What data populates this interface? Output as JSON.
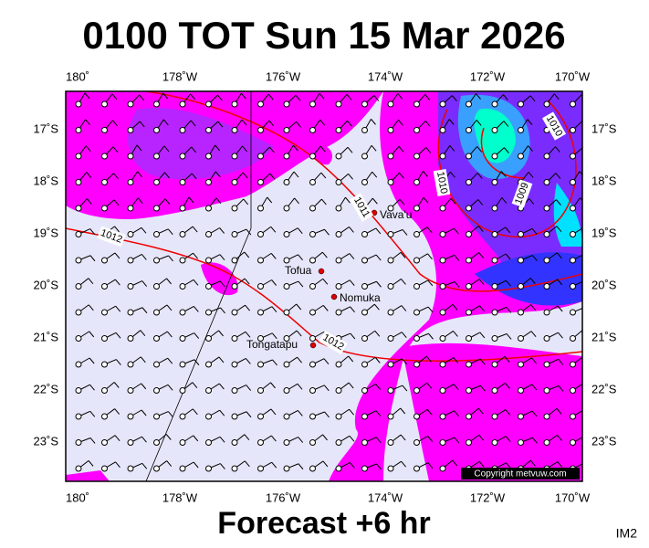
{
  "header": {
    "title": "0100 TOT Sun 15 Mar 2026"
  },
  "map": {
    "lon_labels": [
      "180˚",
      "178˚W",
      "176˚W",
      "174˚W",
      "172˚W",
      "170˚W"
    ],
    "lat_labels": [
      "17˚S",
      "18˚S",
      "19˚S",
      "20˚S",
      "21˚S",
      "22˚S",
      "23˚S"
    ],
    "places": [
      {
        "label": "Vava'u"
      },
      {
        "label": "Tofua"
      },
      {
        "label": "Nomuka"
      },
      {
        "label": "Tongatapu"
      }
    ],
    "isobar_labels": [
      "1010",
      "1010",
      "1009",
      "1011",
      "1012",
      "1012"
    ],
    "copyright": "Copyright metvuw.com"
  },
  "footer": {
    "forecast": "Forecast +6 hr",
    "image_id": "IM2"
  }
}
